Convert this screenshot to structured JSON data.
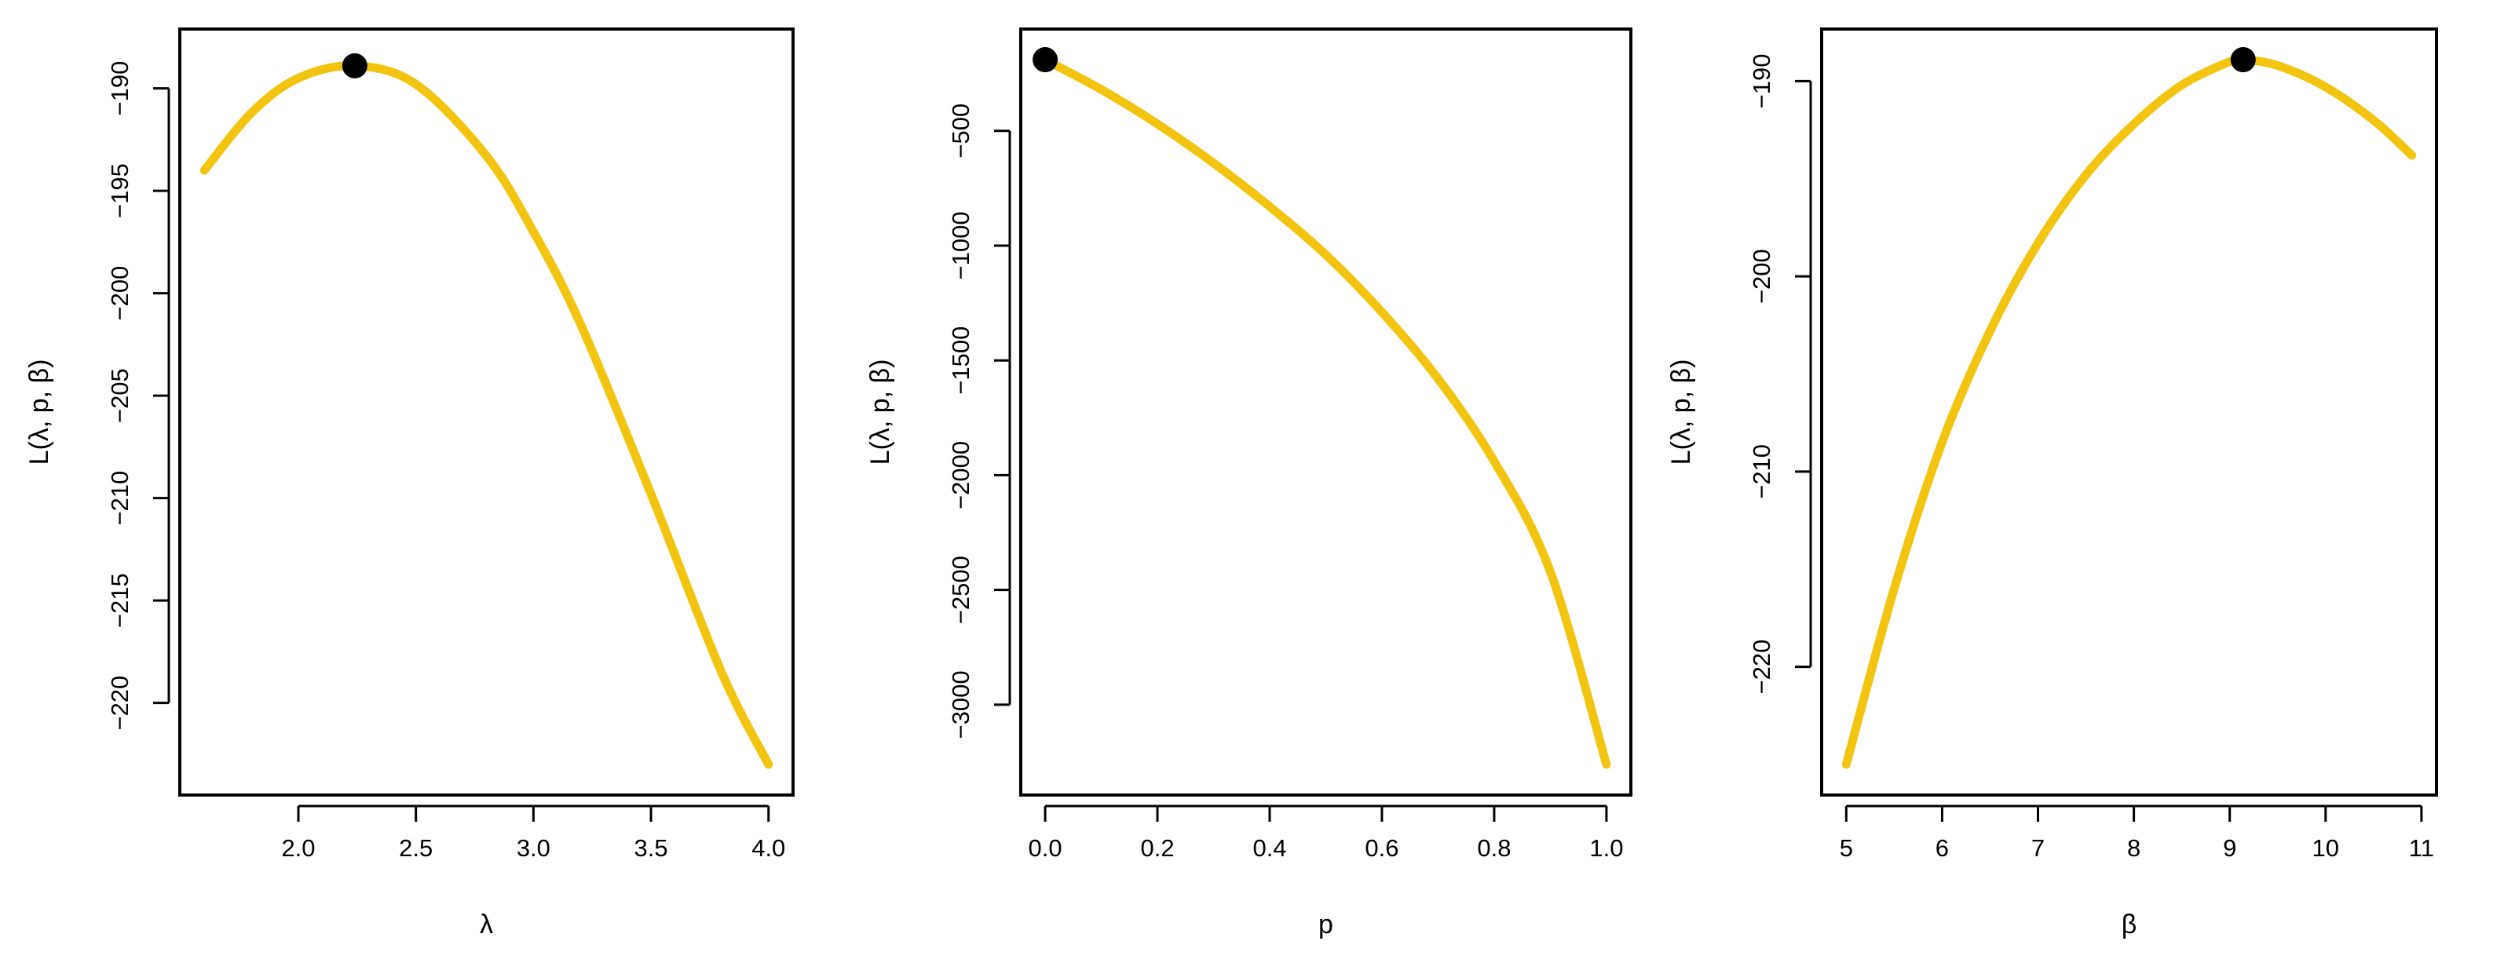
{
  "colors": {
    "curve": "#F2C40F",
    "point": "#000000",
    "frame": "#000000",
    "background": "#ffffff"
  },
  "chart_data": [
    {
      "type": "line",
      "xlabel": "λ",
      "ylabel": "L(λ, p, β)",
      "xlim": [
        1.6,
        4.0
      ],
      "ylim": [
        -223.0,
        -188.6
      ],
      "xticks": [
        2.0,
        2.5,
        3.0,
        3.5,
        4.0
      ],
      "xtick_labels": [
        "2.0",
        "2.5",
        "3.0",
        "3.5",
        "4.0"
      ],
      "yticks": [
        -190,
        -195,
        -200,
        -205,
        -210,
        -215,
        -220
      ],
      "ytick_labels": [
        "−190",
        "−195",
        "−200",
        "−205",
        "−210",
        "−215",
        "−220"
      ],
      "series": [
        {
          "x": [
            1.6,
            1.8,
            2.0,
            2.24,
            2.5,
            2.8,
            3.0,
            3.2,
            3.5,
            3.8,
            4.0
          ],
          "y": [
            -194.0,
            -191.2,
            -189.5,
            -188.9,
            -189.8,
            -193.3,
            -197.0,
            -201.5,
            -209.8,
            -218.5,
            -223.0
          ]
        }
      ],
      "highlight_point": {
        "x": 2.24,
        "y": -188.9
      }
    },
    {
      "type": "line",
      "xlabel": "p",
      "ylabel": "L(λ, p, β)",
      "xlim": [
        0.0,
        1.0
      ],
      "ylim": [
        -3260,
        -190
      ],
      "xticks": [
        0.0,
        0.2,
        0.4,
        0.6,
        0.8,
        1.0
      ],
      "xtick_labels": [
        "0.0",
        "0.2",
        "0.4",
        "0.6",
        "0.8",
        "1.0"
      ],
      "yticks": [
        -500,
        -1000,
        -1500,
        -2000,
        -2500,
        -3000
      ],
      "ytick_labels": [
        "−500",
        "−1000",
        "−1500",
        "−2000",
        "−2500",
        "−3000"
      ],
      "series": [
        {
          "x": [
            0.0,
            0.1,
            0.2,
            0.3,
            0.4,
            0.5,
            0.6,
            0.7,
            0.8,
            0.9,
            1.0
          ],
          "y": [
            -190,
            -320,
            -470,
            -640,
            -830,
            -1040,
            -1290,
            -1580,
            -1940,
            -2420,
            -3260
          ]
        }
      ],
      "highlight_point": {
        "x": 0.0,
        "y": -190
      }
    },
    {
      "type": "line",
      "xlabel": "β",
      "ylabel": "L(λ, p, β)",
      "xlim": [
        5.0,
        10.9
      ],
      "ylim": [
        -225.0,
        -188.9
      ],
      "xticks": [
        5,
        6,
        7,
        8,
        9,
        10,
        11
      ],
      "xtick_labels": [
        "5",
        "6",
        "7",
        "8",
        "9",
        "10",
        "11"
      ],
      "yticks": [
        -190,
        -200,
        -210,
        -220
      ],
      "ytick_labels": [
        "−190",
        "−200",
        "−210",
        "−220"
      ],
      "series": [
        {
          "x": [
            5.0,
            5.5,
            6.0,
            6.5,
            7.0,
            7.5,
            8.0,
            8.5,
            9.0,
            9.14,
            9.5,
            10.0,
            10.5,
            10.9
          ],
          "y": [
            -225.0,
            -216.0,
            -208.5,
            -202.8,
            -198.3,
            -194.8,
            -192.2,
            -190.2,
            -189.0,
            -188.9,
            -189.2,
            -190.3,
            -192.0,
            -193.8
          ]
        }
      ],
      "highlight_point": {
        "x": 9.14,
        "y": -188.9
      }
    }
  ]
}
